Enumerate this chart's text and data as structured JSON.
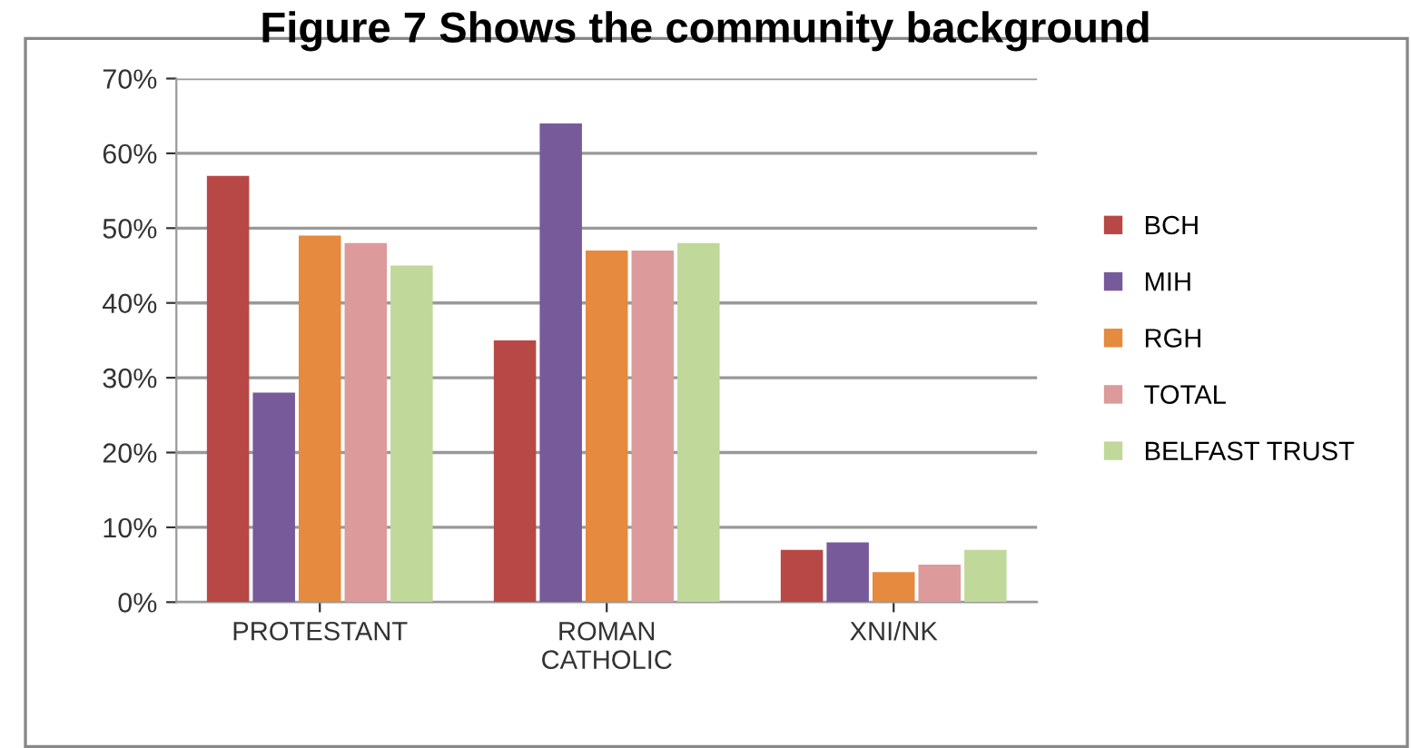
{
  "chart_data": {
    "type": "bar",
    "title": "Figure 7 Shows the community background",
    "categories": [
      "PROTESTANT",
      "ROMAN\nCATHOLIC",
      "XNI/NK"
    ],
    "series": [
      {
        "name": "BCH",
        "color": "#b84845",
        "values": [
          57,
          35,
          7
        ]
      },
      {
        "name": "MIH",
        "color": "#775a9a",
        "values": [
          28,
          64,
          8
        ]
      },
      {
        "name": "RGH",
        "color": "#e58a3e",
        "values": [
          49,
          47,
          4
        ]
      },
      {
        "name": "TOTAL",
        "color": "#dd9a9a",
        "values": [
          48,
          47,
          5
        ]
      },
      {
        "name": "BELFAST TRUST",
        "color": "#c0d89a",
        "values": [
          45,
          48,
          7
        ]
      }
    ],
    "ylim": [
      0,
      70
    ],
    "yticks": [
      {
        "value": 0,
        "label": "0%"
      },
      {
        "value": 10,
        "label": "10%"
      },
      {
        "value": 20,
        "label": "20%"
      },
      {
        "value": 30,
        "label": "30%"
      },
      {
        "value": 40,
        "label": "40%"
      },
      {
        "value": 50,
        "label": "50%"
      },
      {
        "value": 60,
        "label": "60%"
      },
      {
        "value": 70,
        "label": "70%"
      }
    ],
    "grid": "y",
    "legend": "right"
  }
}
